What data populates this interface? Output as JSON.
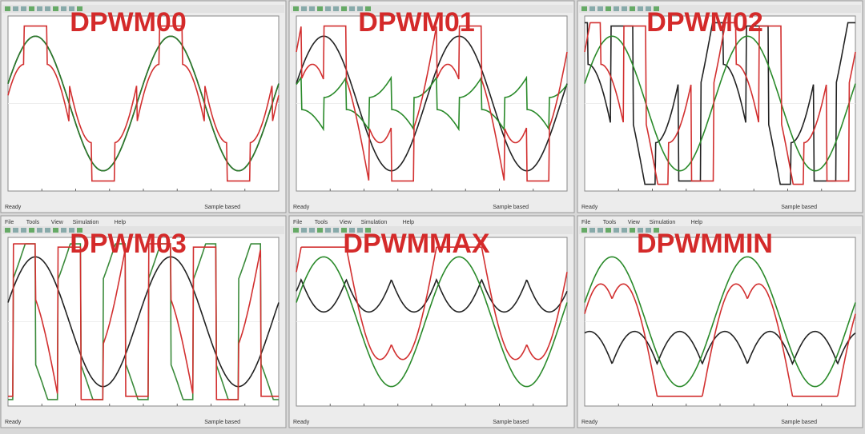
{
  "panels": [
    {
      "title": "DPWM00",
      "status": "Ready",
      "sample": "Sample based"
    },
    {
      "title": "DPWM01",
      "status": "Ready",
      "sample": "Sample based"
    },
    {
      "title": "DPWM02",
      "status": "Ready",
      "sample": "Sample based"
    },
    {
      "title": "DPWM03",
      "menu": [
        "File",
        "Tools",
        "View",
        "Simulation",
        "Help"
      ],
      "status": "Ready",
      "sample": "Sample based"
    },
    {
      "title": "DPWMMAX",
      "menu": [
        "File",
        "Tools",
        "View",
        "Simulation",
        "Help"
      ],
      "status": "Ready",
      "sample": "Sample based"
    },
    {
      "title": "DPWMMIN",
      "menu": [
        "File",
        "Tools",
        "View",
        "Simulation",
        "Help"
      ],
      "status": "Ready",
      "sample": "Sample based"
    }
  ]
}
